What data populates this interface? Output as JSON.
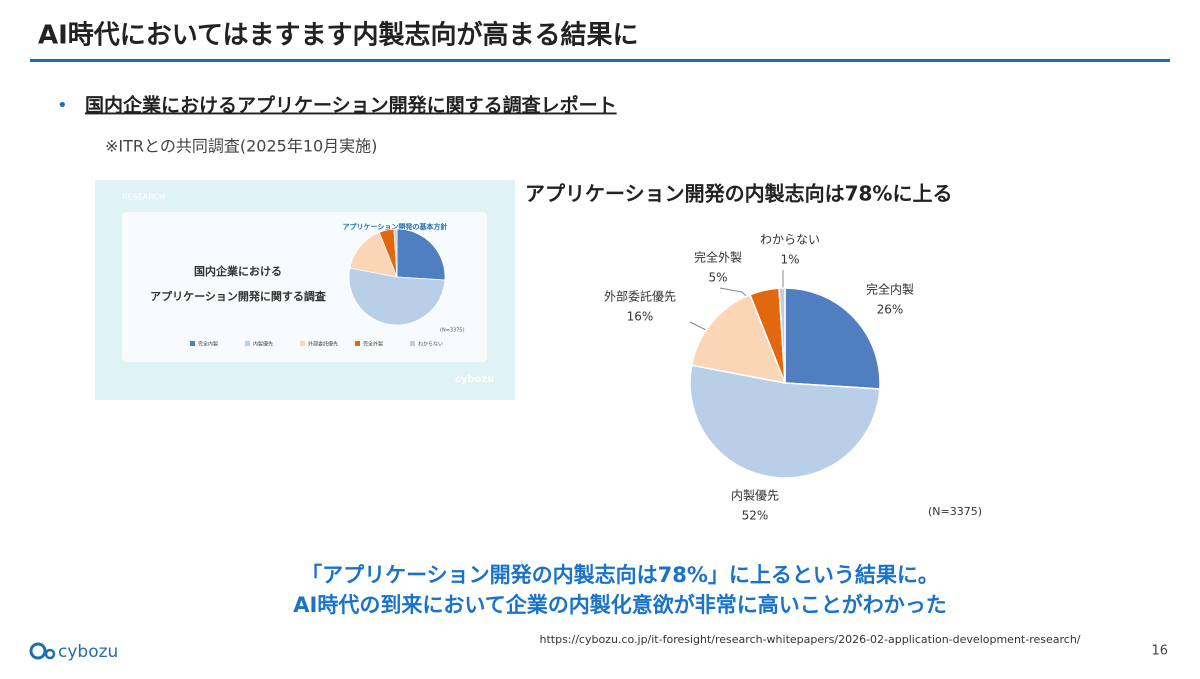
{
  "header": {
    "title": "AI時代においてはますます内製志向が高まる結果に"
  },
  "bullet": {
    "text": "国内企業におけるアプリケーション開発に関する調査レポート",
    "note": "※ITRとの共同調査(2025年10月実施)"
  },
  "thumbnail": {
    "label": "RESEARCH",
    "title_lines": [
      "国内企業における",
      "アプリケーション開発に関する調査"
    ],
    "chart_title": "アプリケーション開発の基本方針",
    "note": "(N=3375)",
    "logo": "cybozu"
  },
  "chart_data": {
    "type": "pie",
    "title": "アプリケーション開発の内製志向は78%に上る",
    "categories": [
      "完全内製",
      "内製優先",
      "外部委託優先",
      "完全外製",
      "わからない"
    ],
    "values": [
      26,
      52,
      16,
      5,
      1
    ],
    "value_labels": [
      "26%",
      "52%",
      "16%",
      "5%",
      "1%"
    ],
    "colors": [
      "#4f7fbf",
      "#b9cfe8",
      "#fbd6b6",
      "#e2670e",
      "#c8ccd2"
    ],
    "note": "(N=3375)"
  },
  "conclusion": [
    "「アプリケーション開発の内製志向は78%」に上るという結果に。",
    "AI時代の到来において企業の内製化意欲が非常に高いことがわかった"
  ],
  "source_url": "https://cybozu.co.jp/it-foresight/research-whitepapers/2026-02-application-development-research/",
  "footer": {
    "logo": "cybozu",
    "page": "16"
  }
}
